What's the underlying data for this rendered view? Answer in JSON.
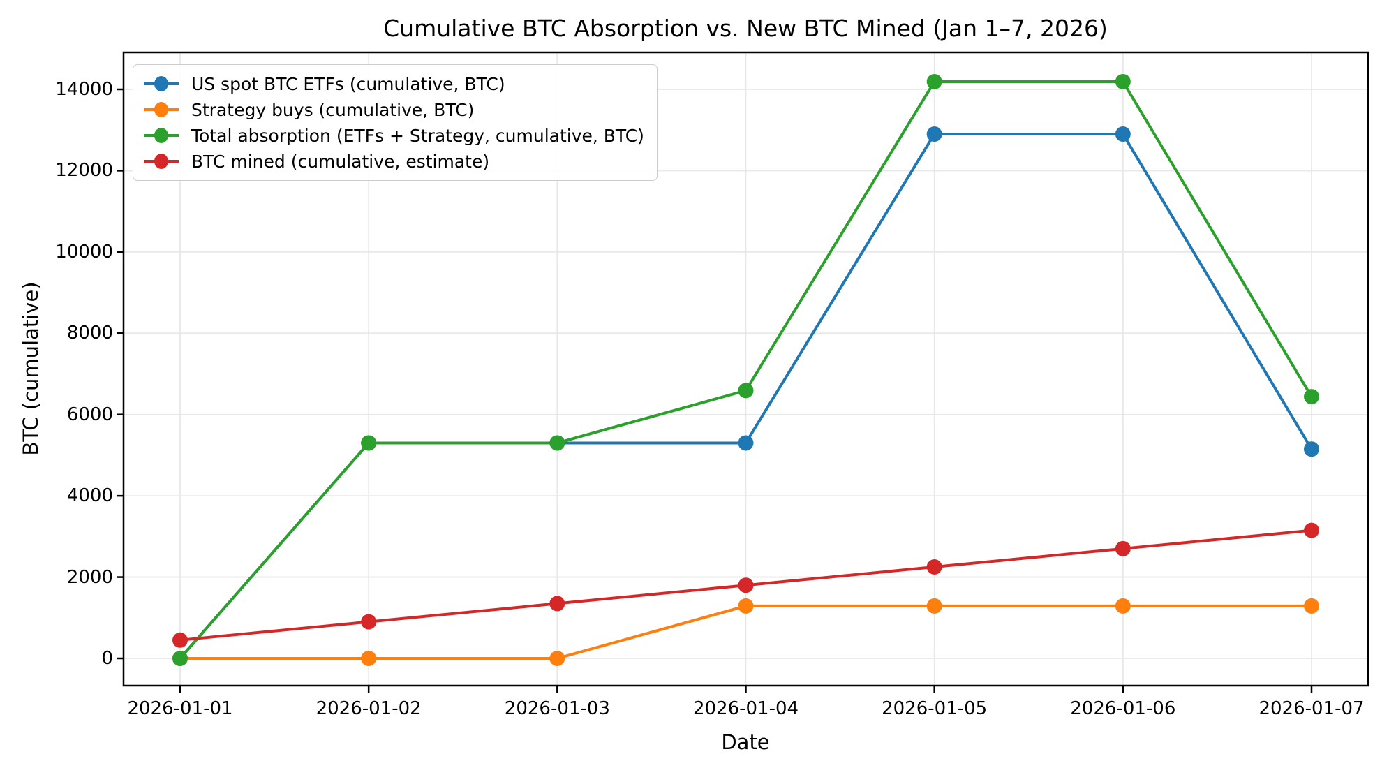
{
  "chart_data": {
    "type": "line",
    "title": "Cumulative BTC Absorption vs. New BTC Mined (Jan 1–7, 2026)",
    "xlabel": "Date",
    "ylabel": "BTC (cumulative)",
    "categories": [
      "2026-01-01",
      "2026-01-02",
      "2026-01-03",
      "2026-01-04",
      "2026-01-05",
      "2026-01-06",
      "2026-01-07"
    ],
    "series": [
      {
        "name": "US spot BTC ETFs (cumulative, BTC)",
        "color": "#1f77b4",
        "values": [
          0,
          5300,
          5300,
          5300,
          12900,
          12900,
          5150
        ]
      },
      {
        "name": "Strategy buys (cumulative, BTC)",
        "color": "#ff7f0e",
        "values": [
          0,
          0,
          0,
          1290,
          1290,
          1290,
          1290
        ]
      },
      {
        "name": "Total absorption (ETFs + Strategy, cumulative, BTC)",
        "color": "#2ca02c",
        "values": [
          0,
          5300,
          5300,
          6590,
          14190,
          14190,
          6440
        ]
      },
      {
        "name": "BTC mined (cumulative, estimate)",
        "color": "#d62728",
        "values": [
          450,
          900,
          1350,
          1800,
          2250,
          2700,
          3150
        ]
      }
    ],
    "yticks": [
      0,
      2000,
      4000,
      6000,
      8000,
      10000,
      12000,
      14000
    ],
    "ylim": [
      -710,
      14910
    ],
    "grid": true,
    "legend_position": "upper-left",
    "marker": "circle",
    "grid_color": "#e8e8e8",
    "spine_color": "#000000",
    "background_color": "#ffffff"
  }
}
